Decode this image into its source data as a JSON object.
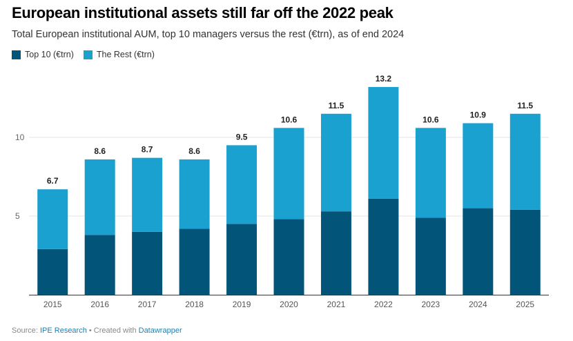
{
  "title": "European institutional assets still far off the 2022 peak",
  "subtitle": "Total European institutional AUM, top 10 managers versus the rest (€trn), as of end 2024",
  "legend": [
    {
      "label": "Top 10 (€trn)",
      "color": "#035479"
    },
    {
      "label": "The Rest (€trn)",
      "color": "#1aa1d0"
    }
  ],
  "footer": {
    "source_prefix": "Source: ",
    "source_link": "IPE Research",
    "sep": " • Created with ",
    "tool_link": "Datawrapper"
  },
  "chart_data": {
    "type": "bar",
    "stacked": true,
    "categories": [
      "2015",
      "2016",
      "2017",
      "2018",
      "2019",
      "2020",
      "2021",
      "2022",
      "2023",
      "2024",
      "2025"
    ],
    "series": [
      {
        "name": "Top 10 (€trn)",
        "color": "#035479",
        "values": [
          2.9,
          3.8,
          4.0,
          4.2,
          4.5,
          4.8,
          5.3,
          6.1,
          4.9,
          5.5,
          5.4
        ]
      },
      {
        "name": "The Rest (€trn)",
        "color": "#1aa1d0",
        "values": [
          3.8,
          4.8,
          4.7,
          4.4,
          5.0,
          5.8,
          6.2,
          7.1,
          5.7,
          5.4,
          6.1
        ]
      }
    ],
    "totals": [
      "6.7",
      "8.6",
      "8.7",
      "8.6",
      "9.5",
      "10.6",
      "11.5",
      "13.2",
      "10.6",
      "10.9",
      "11.5"
    ],
    "yticks": [
      "5",
      "10"
    ],
    "ylim": [
      0,
      14
    ],
    "xlabel": "",
    "ylabel": "",
    "grid": true,
    "legend_position": "top-left"
  }
}
